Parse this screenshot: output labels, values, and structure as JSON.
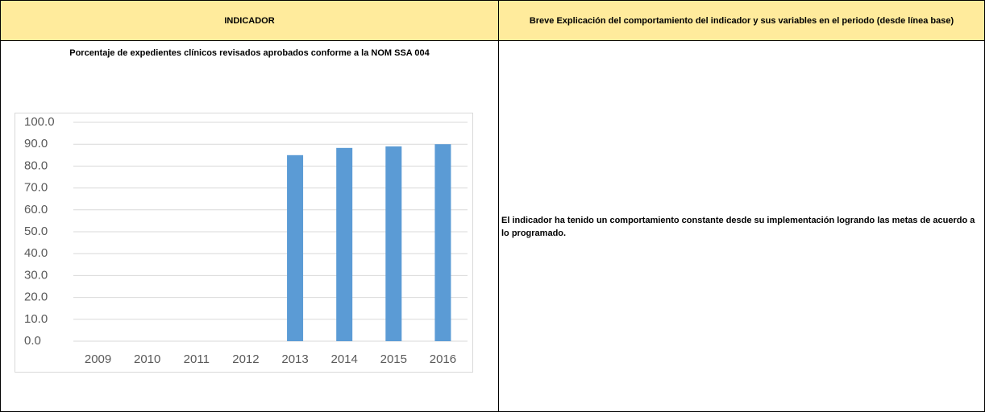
{
  "table": {
    "headers": [
      "INDICADOR",
      "Breve Explicación del comportamiento del indicador y sus variables en el periodo (desde línea base)"
    ],
    "indicator": "Porcentaje  de expedientes clínicos revisados aprobados conforme a la NOM SSA 004",
    "explanation": "El indicador ha tenido un comportamiento constante desde su implementación logrando las metas de acuerdo a lo programado."
  },
  "chart_data": {
    "type": "bar",
    "categories": [
      "2009",
      "2010",
      "2011",
      "2012",
      "2013",
      "2014",
      "2015",
      "2016"
    ],
    "values": [
      null,
      null,
      null,
      null,
      85,
      88.3,
      89,
      90
    ],
    "color": "#5b9bd5",
    "ylim": [
      0,
      100
    ],
    "yticks": [
      {
        "value": 0,
        "label": "0.0"
      },
      {
        "value": 10,
        "label": "10.0"
      },
      {
        "value": 20,
        "label": "20.0"
      },
      {
        "value": 30,
        "label": "30.0"
      },
      {
        "value": 40,
        "label": "40.0"
      },
      {
        "value": 50,
        "label": "50.0"
      },
      {
        "value": 60,
        "label": "60.0"
      },
      {
        "value": 70,
        "label": "70.0"
      },
      {
        "value": 80,
        "label": "80.0"
      },
      {
        "value": 90,
        "label": "90.0"
      },
      {
        "value": 100,
        "label": "100.0"
      }
    ],
    "grid": true
  }
}
